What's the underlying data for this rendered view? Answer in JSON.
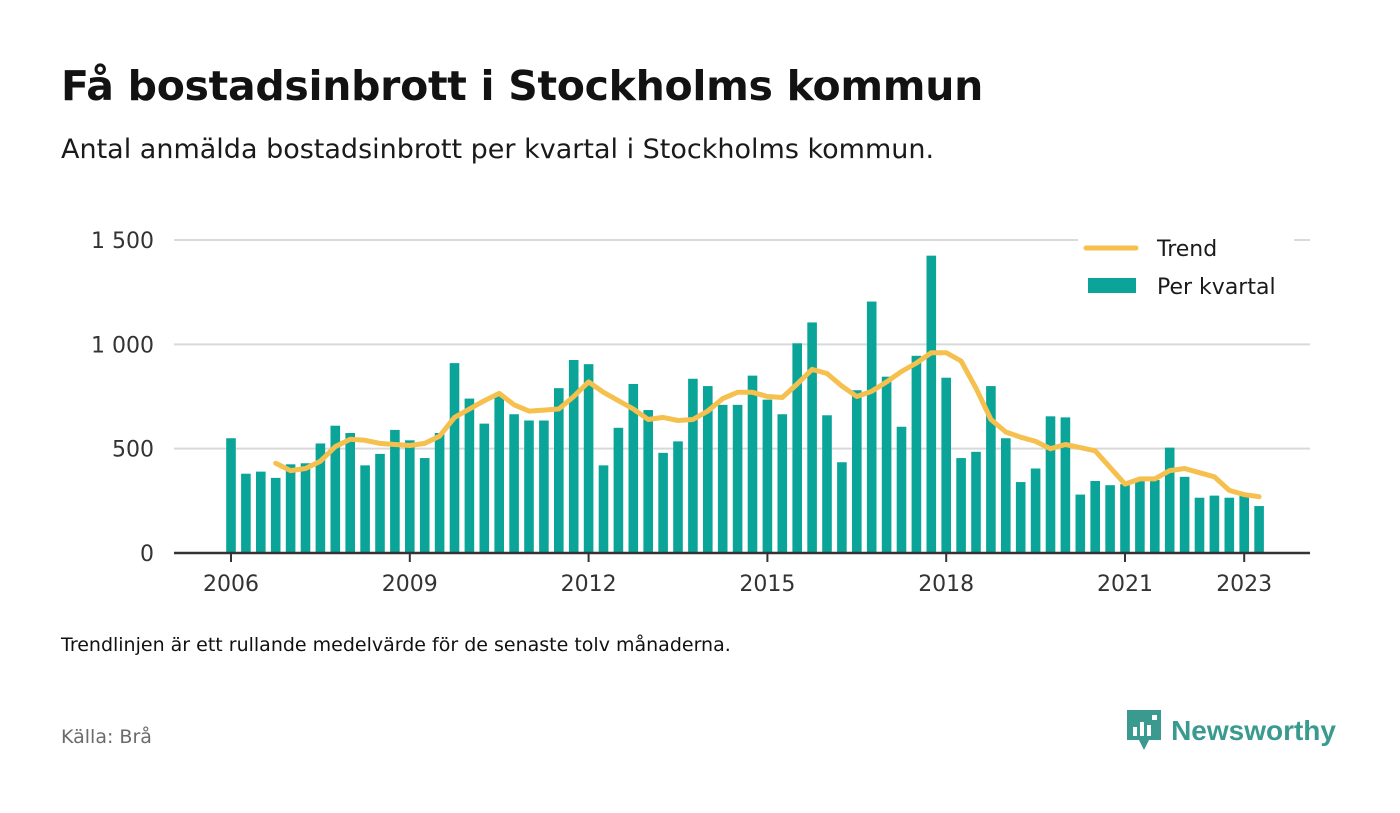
{
  "title": "Få bostadsinbrott i Stockholms kommun",
  "subtitle": "Antal anmälda bostadsinbrott per kvartal i Stockholms kommun.",
  "note": "Trendlinjen är ett rullande medelvärde för de senaste tolv månaderna.",
  "source": "Källa: Brå",
  "logo_text": "Newsworthy",
  "colors": {
    "bar": "#0aa598",
    "trend": "#f5c04e",
    "grid": "#d9d9d9",
    "axis": "#333333",
    "logo": "#3a9a8f"
  },
  "chart_data": {
    "type": "bar",
    "grid": true,
    "legend_position": "top-right",
    "ylim": [
      0,
      1500
    ],
    "y_ticks": [
      0,
      500,
      1000,
      1500
    ],
    "y_tick_labels": [
      "0",
      "500",
      "1 000",
      "1 500"
    ],
    "x_ticks": [
      2006,
      2009,
      2012,
      2015,
      2018,
      2021,
      2023
    ],
    "x_tick_labels": [
      "2006",
      "2009",
      "2012",
      "2015",
      "2018",
      "2021",
      "2023"
    ],
    "x_start": 2006,
    "quarters_per_year": 4,
    "series": [
      {
        "name": "Per kvartal",
        "type": "bar",
        "values": [
          550,
          380,
          390,
          360,
          425,
          430,
          525,
          610,
          575,
          420,
          475,
          590,
          540,
          455,
          575,
          910,
          740,
          620,
          755,
          665,
          635,
          635,
          790,
          925,
          905,
          420,
          600,
          810,
          685,
          480,
          535,
          835,
          800,
          710,
          710,
          850,
          735,
          665,
          1005,
          1105,
          660,
          435,
          780,
          1205,
          845,
          605,
          945,
          1425,
          840,
          455,
          485,
          800,
          550,
          340,
          405,
          655,
          650,
          280,
          345,
          325,
          330,
          345,
          350,
          505,
          365,
          265,
          275,
          265,
          275,
          225
        ]
      },
      {
        "name": "Trend",
        "type": "line",
        "start_index": 3,
        "values": [
          430,
          395,
          405,
          440,
          510,
          545,
          540,
          525,
          520,
          515,
          525,
          560,
          650,
          690,
          730,
          765,
          710,
          680,
          685,
          690,
          750,
          820,
          770,
          730,
          690,
          640,
          650,
          635,
          640,
          680,
          740,
          770,
          770,
          750,
          745,
          810,
          880,
          860,
          800,
          750,
          775,
          820,
          870,
          910,
          960,
          960,
          920,
          790,
          640,
          580,
          555,
          535,
          500,
          520,
          505,
          490,
          410,
          330,
          355,
          355,
          395,
          405,
          385,
          365,
          300,
          280,
          270
        ]
      }
    ]
  }
}
